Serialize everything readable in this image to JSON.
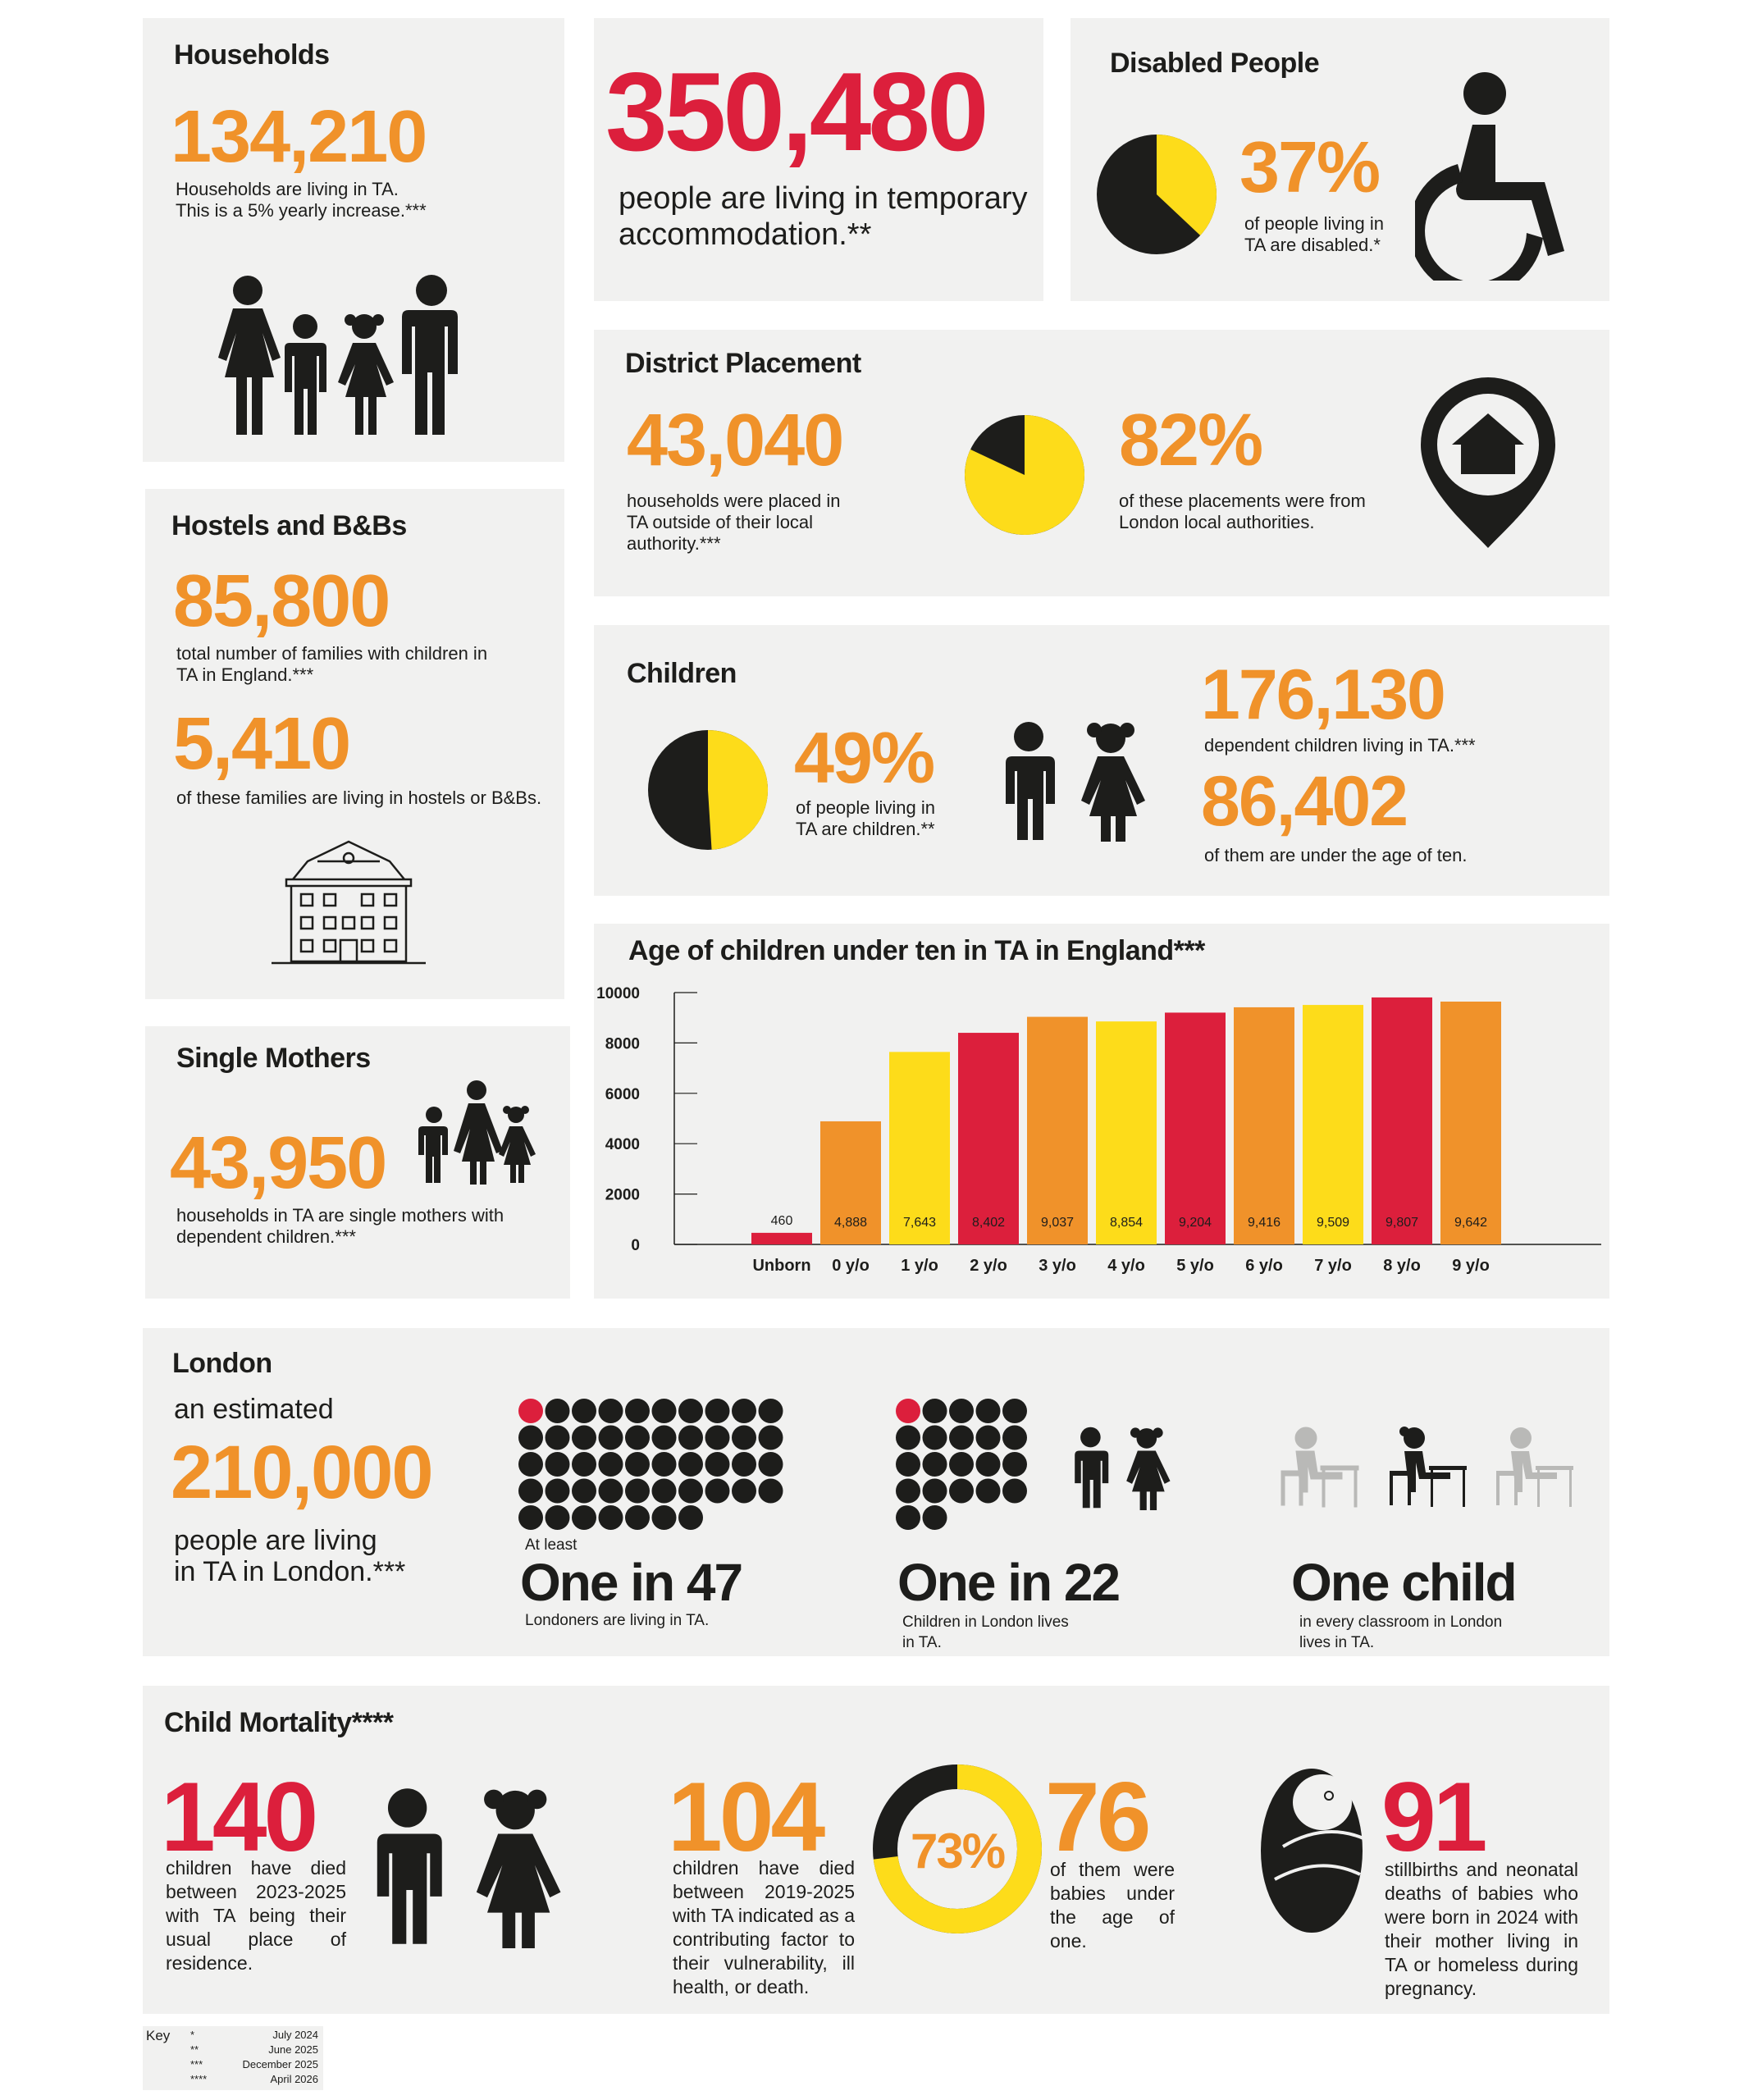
{
  "households": {
    "title": "Households",
    "number": "134,210",
    "line1": "Households are living in TA.",
    "line2": "This is a 5% yearly increase.***",
    "icon": "family-icon"
  },
  "total": {
    "number": "350,480",
    "line1": "people are living in temporary",
    "line2": "accommodation.**"
  },
  "disabled": {
    "title": "Disabled People",
    "percent": "37%",
    "percent_value": 37,
    "line1": "of people living in",
    "line2": "TA are disabled.*",
    "icon": "wheelchair-icon"
  },
  "district": {
    "title": "District Placement",
    "number": "43,040",
    "line1": "households were placed in",
    "line2": "TA outside of their local",
    "line3": "authority.***",
    "percent": "82%",
    "percent_value": 82,
    "pline1": "of these placements were from",
    "pline2": "London local authorities.",
    "icon": "home-location-pin-icon"
  },
  "hostels": {
    "title": "Hostels and B&Bs",
    "number1": "85,800",
    "n1line1": "total number of families with children in",
    "n1line2": "TA in England.***",
    "number2": "5,410",
    "n2line1": "of these families are living in hostels or B&Bs.",
    "icon": "building-icon"
  },
  "children": {
    "title": "Children",
    "percent": "49%",
    "percent_value": 49,
    "line1": "of people living in",
    "line2": "TA are children.**",
    "number1": "176,130",
    "n1line1": "dependent children living in TA.***",
    "number2": "86,402",
    "n2line1": "of them are under the age of ten.",
    "icon": "children-icon"
  },
  "single_mothers": {
    "title": "Single Mothers",
    "number": "43,950",
    "line1": "households in TA are single mothers with",
    "line2": "dependent children.***",
    "icon": "mother-children-icon"
  },
  "chart_data": {
    "type": "bar",
    "title": "Age of children under ten in TA in England***",
    "categories": [
      "Unborn",
      "0 y/o",
      "1 y/o",
      "2 y/o",
      "3 y/o",
      "4 y/o",
      "5 y/o",
      "6 y/o",
      "7 y/o",
      "8 y/o",
      "9 y/o"
    ],
    "values": [
      460,
      4888,
      7643,
      8402,
      9037,
      8854,
      9204,
      9416,
      9509,
      9807,
      9642
    ],
    "value_labels": [
      "460",
      "4,888",
      "7,643",
      "8,402",
      "9,037",
      "8,854",
      "9,204",
      "9,416",
      "9,509",
      "9,807",
      "9,642"
    ],
    "colors": [
      "#dc1f3c",
      "#f0922a",
      "#fddc1a",
      "#dc1f3c",
      "#f0922a",
      "#fddc1a",
      "#dc1f3c",
      "#f0922a",
      "#fddc1a",
      "#dc1f3c",
      "#f0922a"
    ],
    "yticks": [
      "0",
      "2000",
      "4000",
      "6000",
      "8000",
      "10000"
    ],
    "ylim": [
      0,
      10000
    ],
    "xlabel": "",
    "ylabel": ""
  },
  "london": {
    "title": "London",
    "intro": "an estimated",
    "number": "210,000",
    "line1": "people are living",
    "line2": "in TA in London.***",
    "s1_small": "At least",
    "s1_big": "One in 47",
    "s1_line1": "Londoners are living in TA.",
    "s1_dots": 47,
    "s2_big": "One in 22",
    "s2_line1": "Children in London lives",
    "s2_line2": "in TA.",
    "s2_dots": 22,
    "s3_big": "One child",
    "s3_line1": "in every classroom in London",
    "s3_line2": "lives in TA.",
    "icon": "classroom-icon"
  },
  "mortality": {
    "title": "Child Mortality****",
    "n1": "140",
    "n1_text": "children have died between 2023-2025 with TA being their usual place of residence.",
    "n2": "104",
    "n2_text": "children have died between 2019-2025 with TA indicated as a contributing factor to their vulnerability, ill health, or death.",
    "ring_percent": "73%",
    "ring_value": 73,
    "n3": "76",
    "n3_text": "of them were babies under the age of one.",
    "n4": "91",
    "n4_text": "stillbirths and neonatal deaths of babies who were born in 2024 with their mother living in TA or homeless during pregnancy.",
    "icon": "baby-icon"
  },
  "key": {
    "label": "Key",
    "rows": [
      {
        "mark": "*",
        "date": "July 2024"
      },
      {
        "mark": "**",
        "date": "June 2025"
      },
      {
        "mark": "***",
        "date": "December 2025"
      },
      {
        "mark": "****",
        "date": "April 2026"
      }
    ]
  },
  "colors": {
    "orange": "#f0922a",
    "red": "#dc1f3c",
    "yellow": "#fddc1a",
    "dark": "#1d1d1b",
    "card": "#f1f1f0"
  }
}
